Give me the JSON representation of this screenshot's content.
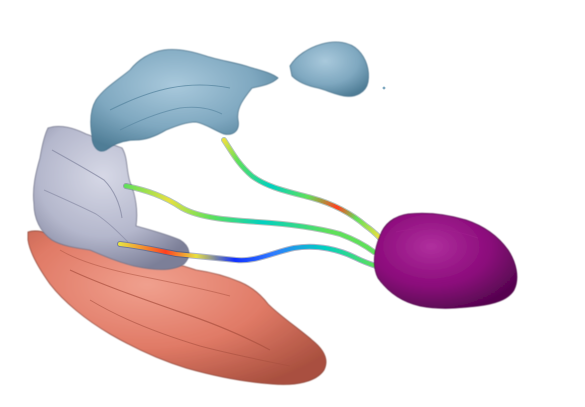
{
  "scene": {
    "background": "#ffffff",
    "structures": [
      {
        "name": "blue-cortex-region",
        "color": "#7fa8c0"
      },
      {
        "name": "gray-cortex-region",
        "color": "#b4b7cc"
      },
      {
        "name": "red-cortex-region",
        "color": "#e07a66"
      },
      {
        "name": "purple-target-region",
        "color": "#8a0a7a"
      }
    ],
    "fiber_tracts": [
      {
        "name": "upper-tract",
        "colormap": [
          "#2f7bff",
          "#00d0c0",
          "#5fe05a",
          "#e8e040",
          "#ff4020"
        ]
      },
      {
        "name": "middle-tract",
        "colormap": [
          "#2f7bff",
          "#00d0c0",
          "#5fe05a",
          "#e8e040",
          "#ff4020"
        ]
      },
      {
        "name": "lower-tract",
        "colormap": [
          "#1030ff",
          "#2f7bff",
          "#00d0c0",
          "#5fe05a",
          "#e8e040",
          "#ff4020"
        ]
      }
    ]
  }
}
